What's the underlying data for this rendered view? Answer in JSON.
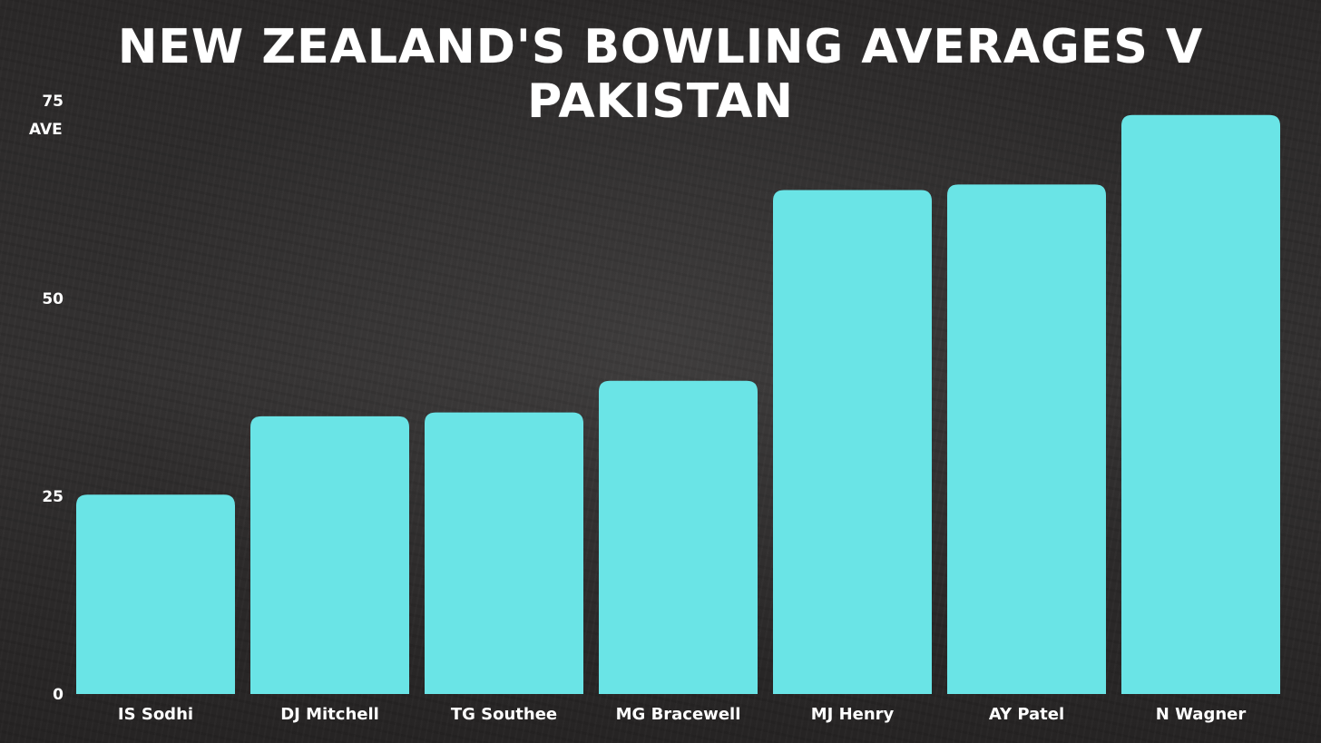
{
  "chart_data": {
    "type": "bar",
    "title": "NEW ZEALAND'S BOWLING AVERAGES V PAKISTAN",
    "xlabel": "",
    "ylabel": "AVE",
    "ylim": [
      0,
      75
    ],
    "yticks": [
      0,
      25,
      50,
      75
    ],
    "grid": false,
    "legend": "none",
    "categories": [
      "IS Sodhi",
      "DJ Mitchell",
      "TG Southee",
      "MG Bracewell",
      "MJ Henry",
      "AY Patel",
      "N Wagner"
    ],
    "values": [
      25.2,
      35.1,
      35.6,
      39.6,
      63.7,
      64.4,
      73.2
    ],
    "bar_color": "#6ae4e6"
  },
  "colors": {
    "text": "#ffffff",
    "background": "#2e2c2c"
  }
}
